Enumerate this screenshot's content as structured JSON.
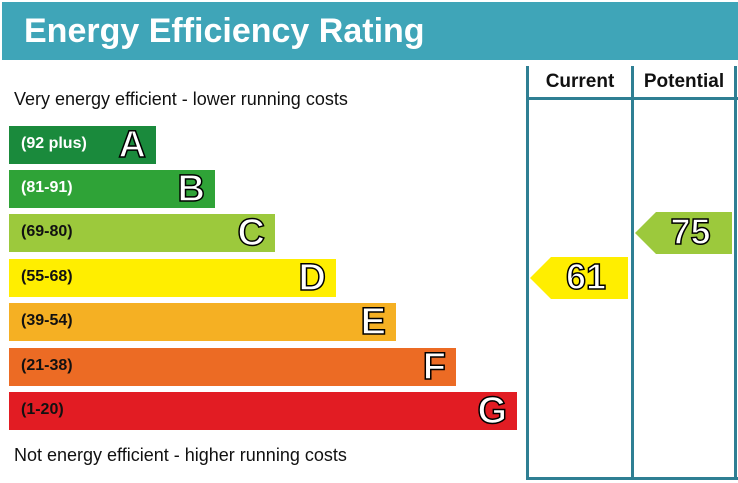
{
  "chart_data": {
    "type": "bar",
    "title": "Energy Efficiency Rating",
    "top_note": "Very energy efficient - lower running costs",
    "bottom_note": "Not energy efficient - higher running costs",
    "columns": [
      "Current",
      "Potential"
    ],
    "bands": [
      {
        "range": "(92 plus)",
        "letter": "A",
        "color": "#1a8a3c",
        "text_color": "#ffffff"
      },
      {
        "range": "(81-91)",
        "letter": "B",
        "color": "#2fa337",
        "text_color": "#ffffff"
      },
      {
        "range": "(69-80)",
        "letter": "C",
        "color": "#9cc93c",
        "text_color": "#111111"
      },
      {
        "range": "(55-68)",
        "letter": "D",
        "color": "#ffee00",
        "text_color": "#111111"
      },
      {
        "range": "(39-54)",
        "letter": "E",
        "color": "#f5b023",
        "text_color": "#111111"
      },
      {
        "range": "(21-38)",
        "letter": "F",
        "color": "#ec6b24",
        "text_color": "#111111"
      },
      {
        "range": "(1-20)",
        "letter": "G",
        "color": "#e21c23",
        "text_color": "#111111"
      }
    ],
    "current": {
      "value": "61",
      "band": "D",
      "color": "#ffee00"
    },
    "potential": {
      "value": "75",
      "band": "C",
      "color": "#9cc93c"
    }
  }
}
